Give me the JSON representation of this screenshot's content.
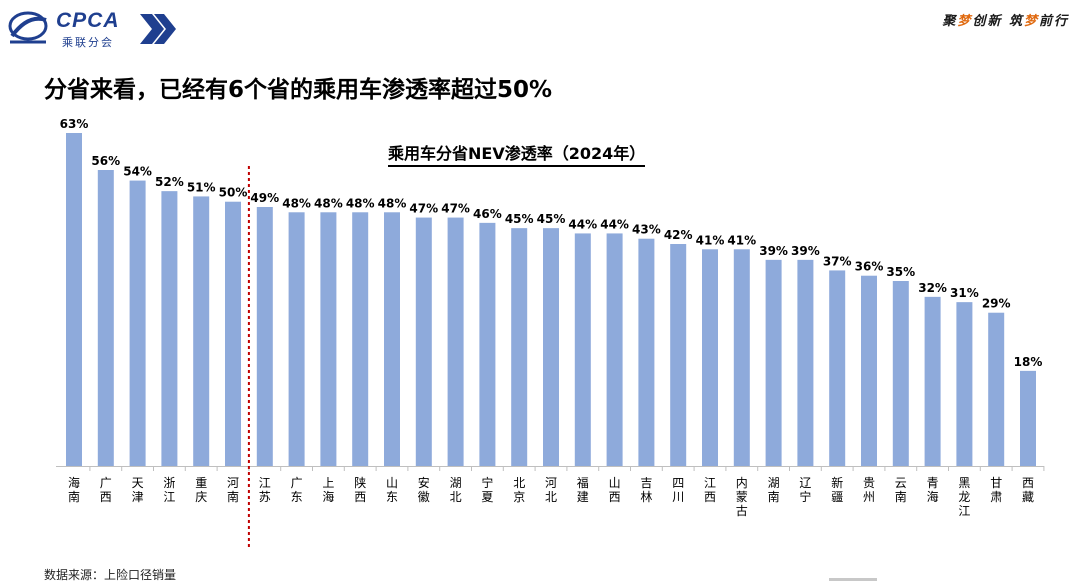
{
  "header": {
    "logo_text": "CPCA",
    "logo_sub": "乘联分会",
    "slogan_parts": [
      "聚",
      "梦",
      "创新 筑",
      "梦",
      "前行"
    ],
    "headline": "分省来看，已经有6个省的乘用车渗透率超过50%"
  },
  "colors": {
    "bar": "#8eaadb",
    "divider": "#c00000",
    "brand": "#1f3f8f",
    "accent": "#e06a10"
  },
  "chart_data": {
    "type": "bar",
    "title": "乘用车分省NEV渗透率（2024年）",
    "xlabel": "",
    "ylabel": "",
    "ylim": [
      0,
      70
    ],
    "grid": false,
    "categories": [
      "海南",
      "广西",
      "天津",
      "浙江",
      "重庆",
      "河南",
      "江苏",
      "广东",
      "上海",
      "陕西",
      "山东",
      "安徽",
      "湖北",
      "宁夏",
      "北京",
      "河北",
      "福建",
      "山西",
      "吉林",
      "四川",
      "江西",
      "内蒙古",
      "湖南",
      "辽宁",
      "新疆",
      "贵州",
      "云南",
      "青海",
      "黑龙江",
      "甘肃",
      "西藏"
    ],
    "values": [
      63,
      56,
      54,
      52,
      51,
      50,
      49,
      48,
      48,
      48,
      48,
      47,
      47,
      46,
      45,
      45,
      44,
      44,
      43,
      42,
      41,
      41,
      39,
      39,
      37,
      36,
      35,
      32,
      31,
      29,
      18
    ],
    "data_labels": [
      "63%",
      "56%",
      "54%",
      "52%",
      "51%",
      "50%",
      "49%",
      "48%",
      "48%",
      "48%",
      "48%",
      "47%",
      "47%",
      "46%",
      "45%",
      "45%",
      "44%",
      "44%",
      "43%",
      "42%",
      "41%",
      "41%",
      "39%",
      "39%",
      "37%",
      "36%",
      "35%",
      "32%",
      "31%",
      "29%",
      "18%"
    ]
  },
  "footer": {
    "source": "数据来源：上险口径销量"
  }
}
